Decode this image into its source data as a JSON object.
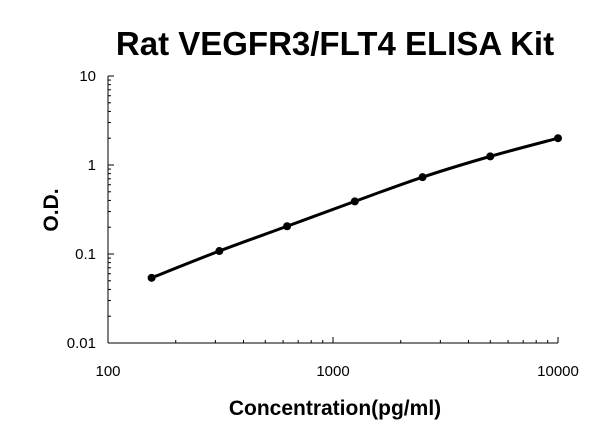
{
  "chart_data": {
    "type": "line",
    "title": "Rat VEGFR3/FLT4 ELISA Kit",
    "xlabel": "Concentration(pg/ml)",
    "ylabel": "O.D.",
    "x_scale": "log",
    "y_scale": "log",
    "xlim": [
      100,
      10000
    ],
    "ylim": [
      0.01,
      10
    ],
    "x_ticks": [
      "100",
      "1000",
      "10000"
    ],
    "y_ticks": [
      "0.01",
      "0.1",
      "1",
      "10"
    ],
    "grid": false,
    "legend": "none",
    "series": [
      {
        "x": [
          156.25,
          312.5,
          625,
          1250,
          2500,
          5000,
          10000
        ],
        "y": [
          0.054,
          0.108,
          0.205,
          0.39,
          0.73,
          1.25,
          2.0
        ]
      }
    ],
    "colors": {
      "line": "#000000",
      "marker": "#000000",
      "axis": "#000000"
    }
  }
}
